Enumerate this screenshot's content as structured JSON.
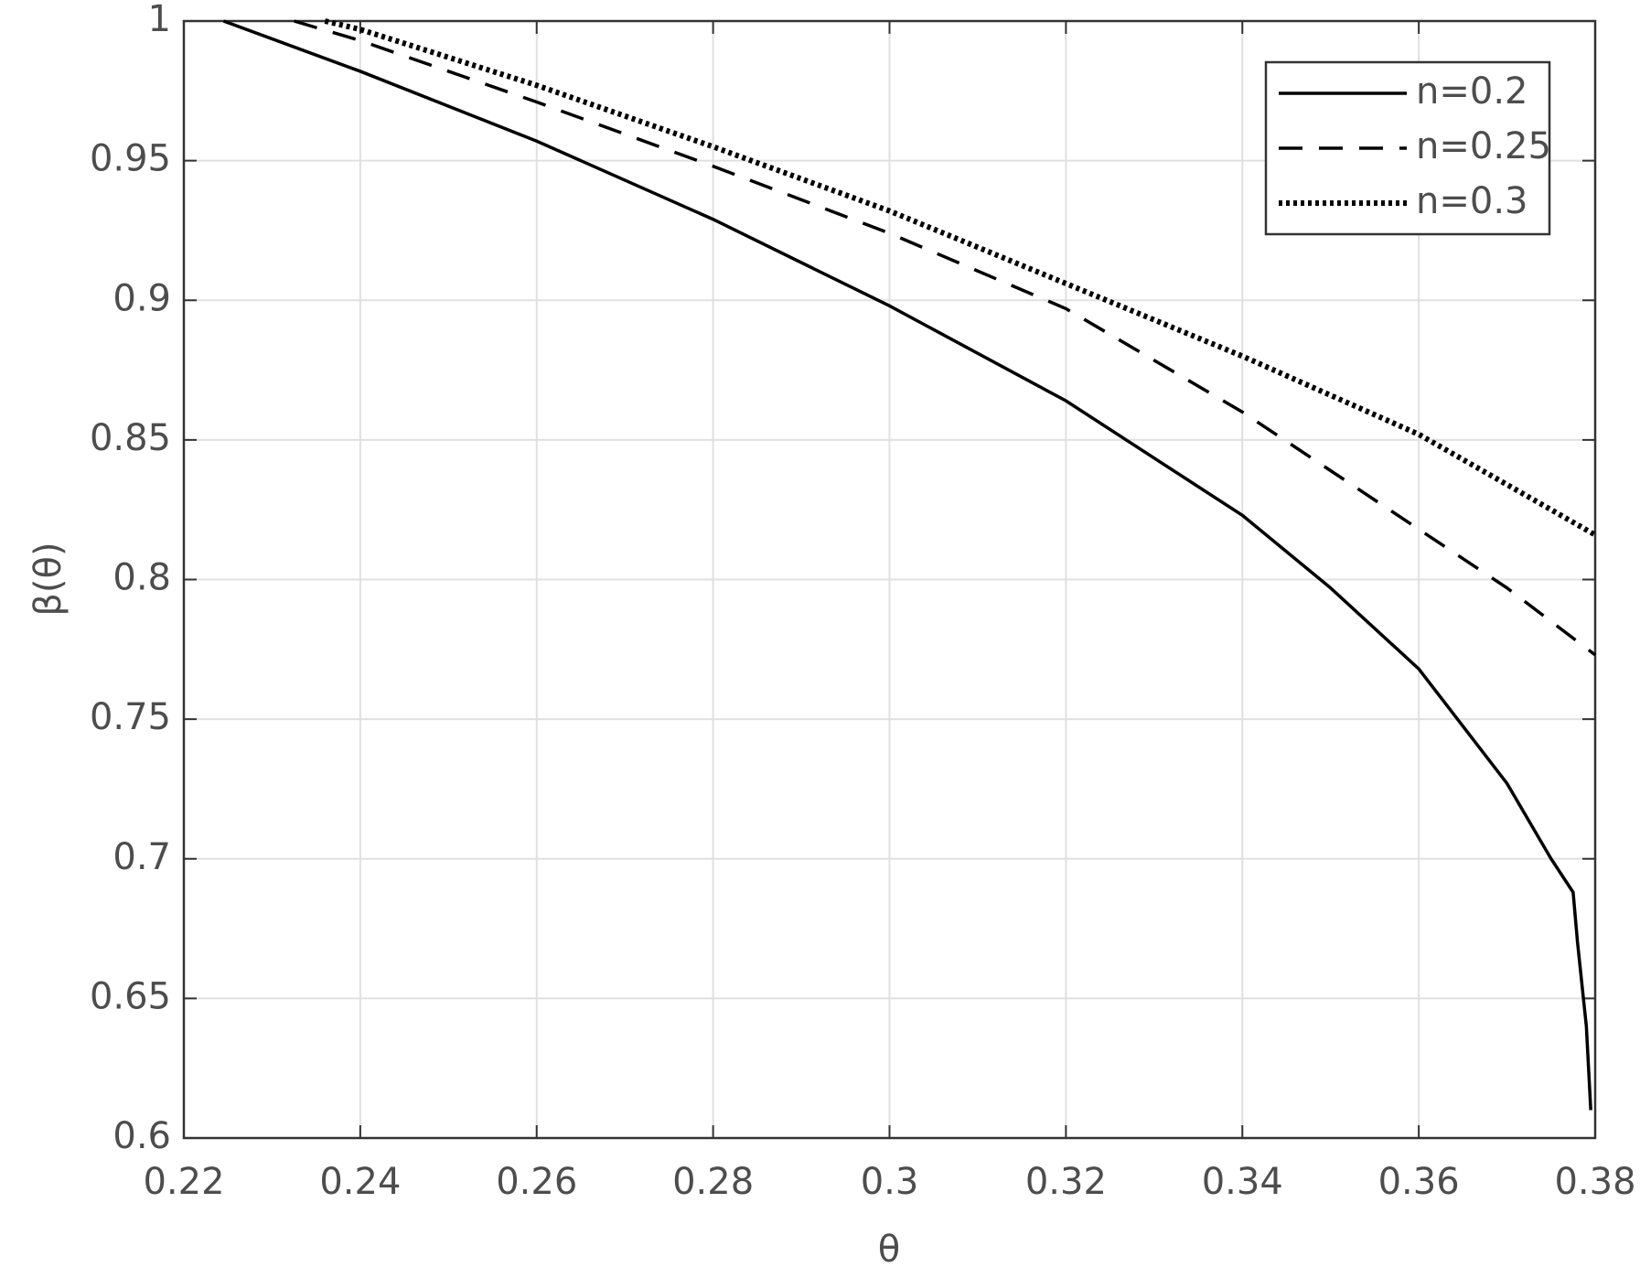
{
  "chart_data": {
    "type": "line",
    "xlabel": "θ",
    "ylabel": "β(θ)",
    "xlim": [
      0.22,
      0.38
    ],
    "ylim": [
      0.6,
      1
    ],
    "xticks": [
      0.22,
      0.24,
      0.26,
      0.28,
      0.3,
      0.32,
      0.34,
      0.36,
      0.38
    ],
    "yticks": [
      0.6,
      0.65,
      0.7,
      0.75,
      0.8,
      0.85,
      0.9,
      0.95,
      1
    ],
    "grid": true,
    "legend": "upper right",
    "series": [
      {
        "name": "n=0.2",
        "color": "#000000",
        "style": "solid",
        "x": [
          0.2245,
          0.24,
          0.26,
          0.28,
          0.3,
          0.32,
          0.34,
          0.35,
          0.36,
          0.37,
          0.375,
          0.3775,
          0.378,
          0.379,
          0.3795
        ],
        "values": [
          1,
          0.982,
          0.957,
          0.929,
          0.898,
          0.864,
          0.823,
          0.797,
          0.768,
          0.727,
          0.7,
          0.688,
          0.67,
          0.64,
          0.61
        ]
      },
      {
        "name": "n=0.25",
        "color": "#000000",
        "style": "dashed",
        "x": [
          0.2325,
          0.24,
          0.26,
          0.28,
          0.3,
          0.32,
          0.34,
          0.36,
          0.37,
          0.38
        ],
        "values": [
          1,
          0.993,
          0.971,
          0.948,
          0.924,
          0.897,
          0.86,
          0.818,
          0.797,
          0.773
        ]
      },
      {
        "name": "n=0.3",
        "color": "#000000",
        "style": "dotted",
        "x": [
          0.236,
          0.24,
          0.26,
          0.28,
          0.3,
          0.32,
          0.34,
          0.36,
          0.38
        ],
        "values": [
          1,
          0.997,
          0.977,
          0.955,
          0.932,
          0.906,
          0.88,
          0.852,
          0.816
        ]
      }
    ]
  }
}
